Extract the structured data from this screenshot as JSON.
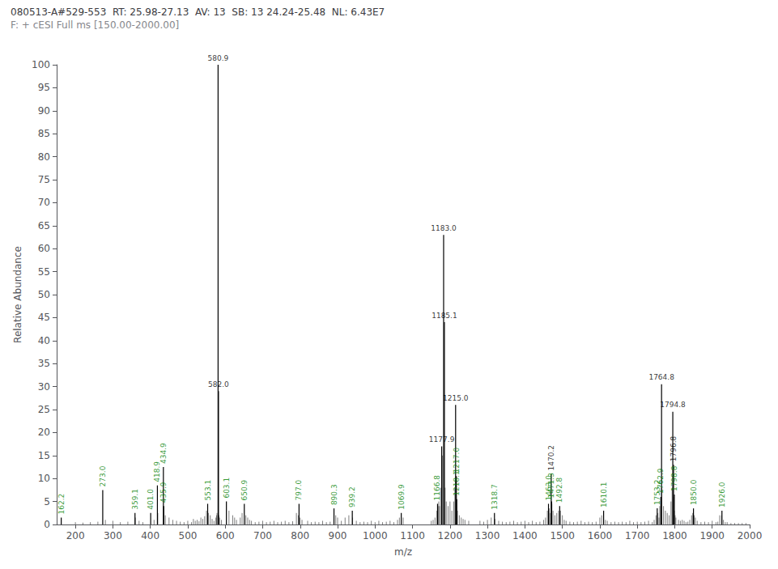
{
  "chart_data": {
    "type": "stem",
    "title": "080513-A#529-553  RT: 25.98-27.13  AV: 13  SB: 13 24.24-25.48  NL: 6.43E7",
    "subtitle": "F: + cESI Full ms [150.00-2000.00]",
    "x_label": "m/z",
    "y_label": "Relative Abundance",
    "xlim": [
      150,
      2000
    ],
    "ylim": [
      0,
      100
    ],
    "xticks": [
      200,
      300,
      400,
      500,
      600,
      700,
      800,
      900,
      1000,
      1100,
      1200,
      1300,
      1400,
      1500,
      1600,
      1700,
      1800,
      1900,
      2000
    ],
    "yticks": [
      0,
      5,
      10,
      15,
      20,
      25,
      30,
      35,
      40,
      45,
      50,
      55,
      60,
      65,
      70,
      75,
      80,
      85,
      90,
      95,
      100
    ],
    "grid": false,
    "color": "#000000",
    "series": [
      {
        "x": [
          565,
          570,
          575,
          577,
          578,
          583,
          585,
          590,
          200,
          220,
          240,
          260,
          280,
          300,
          320,
          340,
          360,
          370,
          380,
          410,
          420,
          440,
          450,
          460,
          470,
          480,
          490,
          500,
          510,
          515,
          520,
          525,
          530,
          535,
          540,
          545,
          550,
          555,
          560,
          610,
          620,
          625,
          630,
          640,
          645,
          655,
          660,
          665,
          670,
          680,
          690,
          700,
          710,
          720,
          730,
          740,
          750,
          760,
          770,
          780,
          790,
          795,
          800,
          805,
          820,
          830,
          840,
          850,
          860,
          870,
          880,
          895,
          900,
          910,
          920,
          930,
          940,
          950,
          960,
          970,
          980,
          990,
          1000,
          1010,
          1020,
          1030,
          1040,
          1050,
          1060,
          1065,
          1075,
          1150,
          1155,
          1160,
          1165,
          1168,
          1170,
          1172,
          1175,
          1180,
          1187,
          1190,
          1195,
          1200,
          1205,
          1210,
          1213,
          1220,
          1225,
          1230,
          1235,
          1240,
          1250,
          1280,
          1290,
          1300,
          1310,
          1320,
          1330,
          1340,
          1350,
          1360,
          1370,
          1380,
          1390,
          1400,
          1410,
          1420,
          1430,
          1440,
          1450,
          1455,
          1460,
          1465,
          1468,
          1472,
          1475,
          1480,
          1485,
          1490,
          1495,
          1500,
          1505,
          1510,
          1520,
          1530,
          1540,
          1550,
          1560,
          1570,
          1580,
          1590,
          1600,
          1605,
          1615,
          1620,
          1630,
          1640,
          1650,
          1660,
          1670,
          1680,
          1690,
          1700,
          1710,
          1720,
          1730,
          1740,
          1745,
          1750,
          1755,
          1758,
          1760,
          1765,
          1770,
          1775,
          1780,
          1785,
          1790,
          1793,
          1797,
          1799,
          1801,
          1803,
          1810,
          1815,
          1820,
          1825,
          1830,
          1835,
          1840,
          1845,
          1848,
          1852,
          1855,
          1860,
          1870,
          1880,
          1890,
          1900,
          1910,
          1915,
          1920,
          1925,
          1930,
          1935,
          1940,
          1950,
          1960,
          1970,
          1980,
          1990
        ],
        "values": [
          1.2,
          0.8,
          1.5,
          2.0,
          2.5,
          2.0,
          1.5,
          1.0,
          0.5,
          0.4,
          0.5,
          0.6,
          1.0,
          0.8,
          0.5,
          0.6,
          1.5,
          0.8,
          0.5,
          1.0,
          2.5,
          2.0,
          1.5,
          1.0,
          0.8,
          0.6,
          0.5,
          0.8,
          0.5,
          1.2,
          0.8,
          1.0,
          0.7,
          1.5,
          1.2,
          1.8,
          3.0,
          2.5,
          2.0,
          3.0,
          2.0,
          1.5,
          1.0,
          1.5,
          2.5,
          2.0,
          1.5,
          1.0,
          0.8,
          0.5,
          0.6,
          0.8,
          0.5,
          0.6,
          0.8,
          0.5,
          0.6,
          0.8,
          0.5,
          0.7,
          2.5,
          2.0,
          1.5,
          1.0,
          0.8,
          0.5,
          0.6,
          0.5,
          0.8,
          0.5,
          0.6,
          2.0,
          1.5,
          0.8,
          1.5,
          2.0,
          1.5,
          0.8,
          0.5,
          0.6,
          0.5,
          0.8,
          0.5,
          0.8,
          0.5,
          0.6,
          0.8,
          0.5,
          1.0,
          1.5,
          1.5,
          0.8,
          1.0,
          1.5,
          3.0,
          4.0,
          5.0,
          4.0,
          8.0,
          15.0,
          8.0,
          5.0,
          4.0,
          5.0,
          3.0,
          5.0,
          8.0,
          3.0,
          2.0,
          1.5,
          1.2,
          1.0,
          0.8,
          0.8,
          0.6,
          1.0,
          1.5,
          1.2,
          0.8,
          0.6,
          0.5,
          0.6,
          0.8,
          0.5,
          0.6,
          0.8,
          0.5,
          0.8,
          0.5,
          0.6,
          1.0,
          1.5,
          3.0,
          3.5,
          2.5,
          4.5,
          3.0,
          2.0,
          2.5,
          3.0,
          3.0,
          2.0,
          1.0,
          0.8,
          0.6,
          0.5,
          0.6,
          0.8,
          0.5,
          0.6,
          0.5,
          0.6,
          1.5,
          2.0,
          1.0,
          0.8,
          0.5,
          0.6,
          0.5,
          0.6,
          0.5,
          0.8,
          0.5,
          0.6,
          0.5,
          0.6,
          0.8,
          0.5,
          1.0,
          2.0,
          2.5,
          1.5,
          4.0,
          8.0,
          4.0,
          3.0,
          2.5,
          2.0,
          5.0,
          8.0,
          6.0,
          3.0,
          2.0,
          1.5,
          1.0,
          0.8,
          1.0,
          0.8,
          0.5,
          0.6,
          1.0,
          2.0,
          2.5,
          2.0,
          1.5,
          0.8,
          0.5,
          0.6,
          0.5,
          0.8,
          0.5,
          0.6,
          2.0,
          2.0,
          1.0,
          0.5,
          0.5,
          0.3,
          0.3,
          0.3,
          0.3,
          0.3
        ]
      },
      {
        "x": [
          162.2,
          273.0,
          359.1,
          401.0,
          418.9,
          434.9,
          435.9,
          553.1,
          580.9,
          582.0,
          603.1,
          650.9,
          797.0,
          890.3,
          939.2,
          1069.9,
          1166.8,
          1177.9,
          1183.0,
          1185.1,
          1215.0,
          1217.0,
          1218.1,
          1318.7,
          1463.0,
          1470.2,
          1471.3,
          1492.8,
          1610.1,
          1753.2,
          1762.9,
          1764.8,
          1794.8,
          1796.8,
          1798.8,
          1850.0,
          1926.0
        ],
        "values": [
          1.5,
          7.5,
          2.5,
          2.5,
          8.5,
          12.5,
          4.0,
          4.5,
          100.0,
          29.0,
          5.0,
          4.5,
          4.5,
          3.5,
          3.0,
          2.5,
          4.5,
          17.0,
          63.0,
          44.0,
          26.0,
          10.5,
          5.5,
          2.5,
          4.5,
          11.0,
          5.0,
          4.0,
          3.0,
          3.5,
          6.0,
          30.5,
          24.5,
          13.0,
          6.5,
          3.5,
          3.0
        ]
      }
    ],
    "annotations": [
      {
        "x": 162.2,
        "y": 1.5,
        "text": "162.2",
        "color": "#008000"
      },
      {
        "x": 273.0,
        "y": 7.5,
        "text": "273.0",
        "color": "#008000"
      },
      {
        "x": 359.1,
        "y": 2.5,
        "text": "359.1",
        "color": "#008000"
      },
      {
        "x": 401.0,
        "y": 2.5,
        "text": "401.0",
        "color": "#008000"
      },
      {
        "x": 418.9,
        "y": 8.5,
        "text": "418.9",
        "color": "#008000"
      },
      {
        "x": 434.9,
        "y": 12.5,
        "text": "434.9",
        "color": "#008000"
      },
      {
        "x": 435.9,
        "y": 4.0,
        "text": "435.9",
        "color": "#008000"
      },
      {
        "x": 553.1,
        "y": 4.5,
        "text": "553.1",
        "color": "#008000"
      },
      {
        "x": 580.9,
        "y": 100.0,
        "text": "580.9",
        "color": "#000000"
      },
      {
        "x": 582.0,
        "y": 29.0,
        "text": "582.0",
        "color": "#000000"
      },
      {
        "x": 603.1,
        "y": 5.0,
        "text": "603.1",
        "color": "#008000"
      },
      {
        "x": 650.9,
        "y": 4.5,
        "text": "650.9",
        "color": "#008000"
      },
      {
        "x": 797.0,
        "y": 4.5,
        "text": "797.0",
        "color": "#008000"
      },
      {
        "x": 890.3,
        "y": 3.5,
        "text": "890.3",
        "color": "#008000"
      },
      {
        "x": 939.2,
        "y": 3.0,
        "text": "939.2",
        "color": "#008000"
      },
      {
        "x": 1069.9,
        "y": 2.5,
        "text": "1069.9",
        "color": "#008000"
      },
      {
        "x": 1166.8,
        "y": 4.5,
        "text": "1166.8",
        "color": "#008000"
      },
      {
        "x": 1177.9,
        "y": 17.0,
        "text": "1177.9",
        "color": "#000000"
      },
      {
        "x": 1183.0,
        "y": 63.0,
        "text": "1183.0",
        "color": "#000000"
      },
      {
        "x": 1185.1,
        "y": 44.0,
        "text": "1185.1",
        "color": "#000000"
      },
      {
        "x": 1215.0,
        "y": 26.0,
        "text": "1215.0",
        "color": "#000000"
      },
      {
        "x": 1217.0,
        "y": 10.5,
        "text": "1217.0",
        "color": "#008000"
      },
      {
        "x": 1218.1,
        "y": 5.5,
        "text": "1218.1",
        "color": "#008000"
      },
      {
        "x": 1318.7,
        "y": 2.5,
        "text": "1318.7",
        "color": "#008000"
      },
      {
        "x": 1463.0,
        "y": 4.5,
        "text": "1463.0",
        "color": "#008000"
      },
      {
        "x": 1470.2,
        "y": 11.0,
        "text": "1470.2",
        "color": "#000000"
      },
      {
        "x": 1471.3,
        "y": 5.0,
        "text": "1471.3",
        "color": "#008000"
      },
      {
        "x": 1492.8,
        "y": 4.0,
        "text": "1492.8",
        "color": "#008000"
      },
      {
        "x": 1610.1,
        "y": 3.0,
        "text": "1610.1",
        "color": "#008000"
      },
      {
        "x": 1753.2,
        "y": 3.5,
        "text": "1753.2",
        "color": "#008000"
      },
      {
        "x": 1762.9,
        "y": 6.0,
        "text": "1762.9",
        "color": "#008000"
      },
      {
        "x": 1764.8,
        "y": 30.5,
        "text": "1764.8",
        "color": "#000000"
      },
      {
        "x": 1794.8,
        "y": 24.5,
        "text": "1794.8",
        "color": "#000000"
      },
      {
        "x": 1796.8,
        "y": 13.0,
        "text": "1796.8",
        "color": "#000000"
      },
      {
        "x": 1798.8,
        "y": 6.5,
        "text": "1798.8",
        "color": "#008000"
      },
      {
        "x": 1850.0,
        "y": 3.5,
        "text": "1850.0",
        "color": "#008000"
      },
      {
        "x": 1926.0,
        "y": 3.0,
        "text": "1926.0",
        "color": "#008000"
      }
    ]
  }
}
